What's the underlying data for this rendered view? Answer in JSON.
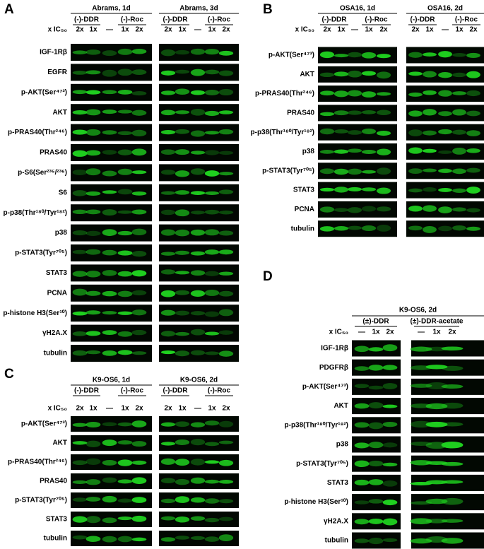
{
  "panels": [
    {
      "label": "A",
      "ic_label": "x IC₅₀",
      "blocks": [
        {
          "title": "Abrams, 1d",
          "groups": [
            "(-)-DDR",
            "(-)-Roc"
          ],
          "lanes": [
            "2x",
            "1x",
            "—",
            "1x",
            "2x"
          ]
        },
        {
          "title": "Abrams, 3d",
          "groups": [
            "(-)-DDR",
            "(-)-Roc"
          ],
          "lanes": [
            "2x",
            "1x",
            "—",
            "1x",
            "2x"
          ]
        }
      ],
      "rows": [
        "IGF-1Rβ",
        "EGFR",
        "p-AKT(Ser⁴⁷³)",
        "AKT",
        "p-PRAS40(Thr²⁴⁶)",
        "PRAS40",
        "p-S6(Ser²³⁵/²³⁶)",
        "S6",
        "p-p38(Thr¹⁸⁰/Tyr¹⁸²)",
        "p38",
        "p-STAT3(Tyr⁷⁰⁵)",
        "STAT3",
        "PCNA",
        "p-histone H3(Ser¹⁰)",
        "γH2A.X",
        "tubulin"
      ]
    },
    {
      "label": "B",
      "ic_label": "x IC₅₀",
      "blocks": [
        {
          "title": "OSA16, 1d",
          "groups": [
            "(-)-DDR",
            "(-)-Roc"
          ],
          "lanes": [
            "2x",
            "1x",
            "—",
            "1x",
            "2x"
          ]
        },
        {
          "title": "OSA16, 2d",
          "groups": [
            "(-)-DDR",
            "(-)-Roc"
          ],
          "lanes": [
            "2x",
            "1x",
            "—",
            "1x",
            "2x"
          ]
        }
      ],
      "rows": [
        "p-AKT(Ser⁴⁷³)",
        "AKT",
        "p-PRAS40(Thr²⁴⁶)",
        "PRAS40",
        "p-p38(Thr¹⁸⁰/Tyr¹⁸²)",
        "p38",
        "p-STAT3(Tyr⁷⁰⁵)",
        "STAT3",
        "PCNA",
        "tubulin"
      ]
    },
    {
      "label": "C",
      "ic_label": "x IC₅₀",
      "blocks": [
        {
          "title": "K9-OS6, 1d",
          "groups": [
            "(-)-DDR",
            "(-)-Roc"
          ],
          "lanes": [
            "2x",
            "1x",
            "—",
            "1x",
            "2x"
          ]
        },
        {
          "title": "K9-OS6, 2d",
          "groups": [
            "(-)-DDR",
            "(-)-Roc"
          ],
          "lanes": [
            "2x",
            "1x",
            "—",
            "1x",
            "2x"
          ]
        }
      ],
      "rows": [
        "p-AKT(Ser⁴⁷³)",
        "AKT",
        "p-PRAS40(Thr²⁴⁶)",
        "PRAS40",
        "p-STAT3(Tyr⁷⁰⁵)",
        "STAT3",
        "tubulin"
      ]
    },
    {
      "label": "D",
      "title": "K9-OS6, 2d",
      "ic_label": "x IC₅₀",
      "blocks": [
        {
          "groups": [
            "(±)-DDR"
          ],
          "lanes": [
            "—",
            "1x",
            "2x"
          ]
        },
        {
          "groups": [
            "(±)-DDR-acetate"
          ],
          "lanes": [
            "—",
            "1x",
            "2x"
          ]
        }
      ],
      "rows": [
        "IGF-1Rβ",
        "PDGFRβ",
        "p-AKT(Ser⁴⁷³)",
        "AKT",
        "p-p38(Thr¹⁸⁰/Tyr¹⁸²)",
        "p38",
        "p-STAT3(Tyr⁷⁰⁵)",
        "STAT3",
        "p-histone H3(Ser¹⁰)",
        "γH2A.X",
        "tubulin"
      ]
    }
  ]
}
